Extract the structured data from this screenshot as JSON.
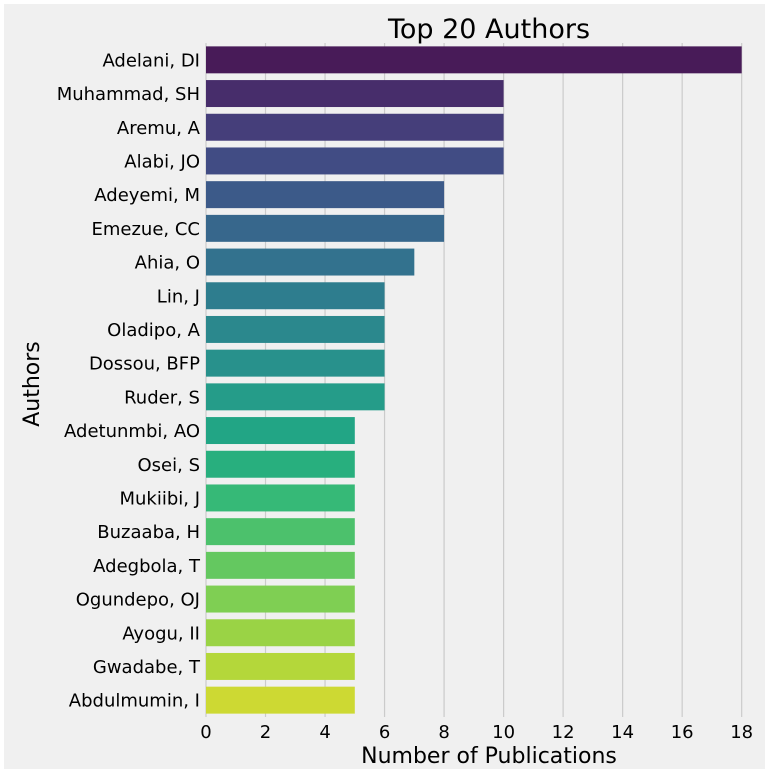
{
  "chart_data": {
    "type": "bar",
    "orientation": "horizontal",
    "title": "Top 20 Authors",
    "xlabel": "Number of Publications",
    "ylabel": "Authors",
    "xlim": [
      0,
      18.75
    ],
    "xticks": [
      0,
      2,
      4,
      6,
      8,
      10,
      12,
      14,
      16,
      18
    ],
    "grid": true,
    "categories": [
      "Adelani, DI",
      "Muhammad, SH",
      "Aremu, A",
      "Alabi, JO",
      "Adeyemi, M",
      "Emezue, CC",
      "Ahia, O",
      "Lin, J",
      "Oladipo, A",
      "Dossou, BFP",
      "Ruder, S",
      "Adetunmbi, AO",
      "Osei, S",
      "Mukiibi, J",
      "Buzaaba, H",
      "Adegbola, T",
      "Ogundepo, OJ",
      "Ayogu, II",
      "Gwadabe, T",
      "Abdulmumin, I"
    ],
    "values": [
      18,
      10,
      10,
      10,
      8,
      8,
      7,
      6,
      6,
      6,
      6,
      5,
      5,
      5,
      5,
      5,
      5,
      5,
      5,
      5
    ],
    "colors": [
      "#481b58",
      "#472d6b",
      "#453e7a",
      "#414c84",
      "#3c5a89",
      "#37678c",
      "#33728e",
      "#2e7d8e",
      "#2b888d",
      "#28918c",
      "#259c89",
      "#22a585",
      "#28af7e",
      "#36b977",
      "#4cc16c",
      "#64c860",
      "#7fcf53",
      "#9ad345",
      "#b4d73a",
      "#cdd933"
    ]
  }
}
